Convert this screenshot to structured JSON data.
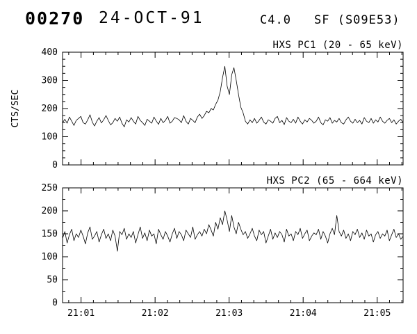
{
  "header": {
    "run_number": "00270",
    "date": "24-OCT-91",
    "goes_class": "C4.0",
    "flare": "SF (S09E53)"
  },
  "chart_data": [
    {
      "type": "line",
      "title": "HXS PC1 (20 - 65 keV)",
      "ylabel": "CTS/SEC",
      "xlabel": "",
      "ylim": [
        0,
        400
      ],
      "yticks": [
        0,
        100,
        200,
        300,
        400
      ],
      "y_minor": 25,
      "xlim": [
        0.75,
        5.35
      ],
      "x_unit": "minutes after 21:00 UT",
      "xticks": [
        {
          "v": 1,
          "label": "21:01"
        },
        {
          "v": 2,
          "label": "21:02"
        },
        {
          "v": 3,
          "label": "21:03"
        },
        {
          "v": 4,
          "label": "21:04"
        },
        {
          "v": 5,
          "label": "21:05"
        }
      ],
      "x_minor": 0.1666667,
      "show_xlabels": false,
      "grid": false,
      "values": [
        150,
        162,
        148,
        170,
        155,
        140,
        158,
        165,
        172,
        150,
        145,
        160,
        178,
        152,
        138,
        155,
        168,
        149,
        160,
        175,
        158,
        142,
        150,
        165,
        155,
        170,
        148,
        135,
        160,
        152,
        168,
        155,
        145,
        172,
        158,
        150,
        140,
        162,
        155,
        148,
        170,
        156,
        144,
        165,
        150,
        158,
        172,
        148,
        155,
        168,
        165,
        160,
        150,
        175,
        155,
        145,
        165,
        158,
        150,
        170,
        180,
        165,
        175,
        190,
        185,
        200,
        195,
        215,
        230,
        260,
        310,
        350,
        280,
        250,
        320,
        345,
        300,
        250,
        205,
        185,
        155,
        145,
        160,
        150,
        165,
        148,
        158,
        170,
        152,
        145,
        160,
        155,
        148,
        165,
        172,
        150,
        158,
        143,
        168,
        155,
        150,
        162,
        148,
        170,
        155,
        145,
        160,
        152,
        165,
        158,
        148,
        155,
        170,
        150,
        142,
        160,
        155,
        168,
        148,
        158,
        152,
        165,
        150,
        145,
        160,
        170,
        155,
        148,
        162,
        150,
        158,
        145,
        168,
        155,
        150,
        165,
        148,
        160,
        152,
        170,
        155,
        148,
        158,
        165,
        150,
        160,
        145,
        155,
        162,
        150
      ]
    },
    {
      "type": "line",
      "title": "HXS PC2 (65 - 664 keV)",
      "ylabel": "",
      "xlabel": "",
      "ylim": [
        0,
        250
      ],
      "yticks": [
        0,
        50,
        100,
        150,
        200,
        250
      ],
      "y_minor": 25,
      "xlim": [
        0.75,
        5.35
      ],
      "x_unit": "minutes after 21:00 UT",
      "xticks": [
        {
          "v": 1,
          "label": "21:01"
        },
        {
          "v": 2,
          "label": "21:02"
        },
        {
          "v": 3,
          "label": "21:03"
        },
        {
          "v": 4,
          "label": "21:04"
        },
        {
          "v": 5,
          "label": "21:05"
        }
      ],
      "x_minor": 0.1666667,
      "show_xlabels": true,
      "grid": false,
      "values": [
        140,
        155,
        130,
        148,
        160,
        135,
        150,
        142,
        158,
        145,
        128,
        152,
        165,
        138,
        145,
        155,
        132,
        148,
        160,
        140,
        150,
        135,
        158,
        145,
        112,
        155,
        148,
        162,
        138,
        150,
        142,
        155,
        130,
        148,
        165,
        140,
        152,
        135,
        158,
        145,
        150,
        128,
        160,
        148,
        138,
        155,
        145,
        132,
        150,
        162,
        140,
        155,
        148,
        135,
        158,
        150,
        142,
        165,
        138,
        148,
        155,
        145,
        160,
        150,
        170,
        158,
        145,
        175,
        160,
        185,
        170,
        200,
        180,
        155,
        190,
        165,
        150,
        175,
        160,
        148,
        155,
        140,
        150,
        162,
        145,
        135,
        158,
        148,
        155,
        130,
        145,
        160,
        138,
        152,
        142,
        155,
        148,
        132,
        160,
        145,
        150,
        135,
        155,
        148,
        162,
        140,
        150,
        158,
        135,
        145,
        152,
        148,
        160,
        138,
        155,
        145,
        130,
        150,
        162,
        148,
        190,
        155,
        145,
        158,
        140,
        150,
        135,
        155,
        148,
        160,
        142,
        152,
        138,
        158,
        145,
        150,
        132,
        148,
        155,
        140,
        150,
        145,
        158,
        135,
        148,
        160,
        142,
        150,
        138,
        145
      ]
    }
  ]
}
